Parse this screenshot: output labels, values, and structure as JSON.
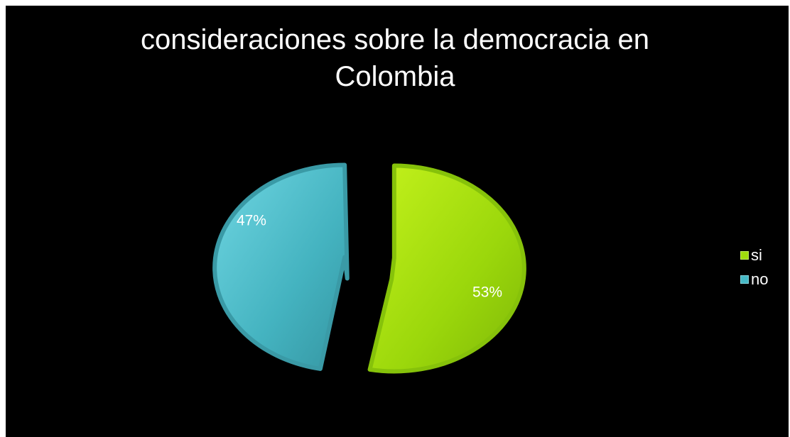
{
  "chart_data": {
    "type": "pie",
    "title": "consideraciones sobre la democracia en Colombia",
    "title_lines": [
      "consideraciones sobre la democracia en",
      "Colombia"
    ],
    "categories": [
      "si",
      "no"
    ],
    "values": [
      53,
      47
    ],
    "data_labels": [
      "53%",
      "47%"
    ],
    "colors": [
      "#9fdc0c",
      "#46b9c6"
    ],
    "legend_position": "right",
    "exploded": true,
    "background": "#000000"
  }
}
